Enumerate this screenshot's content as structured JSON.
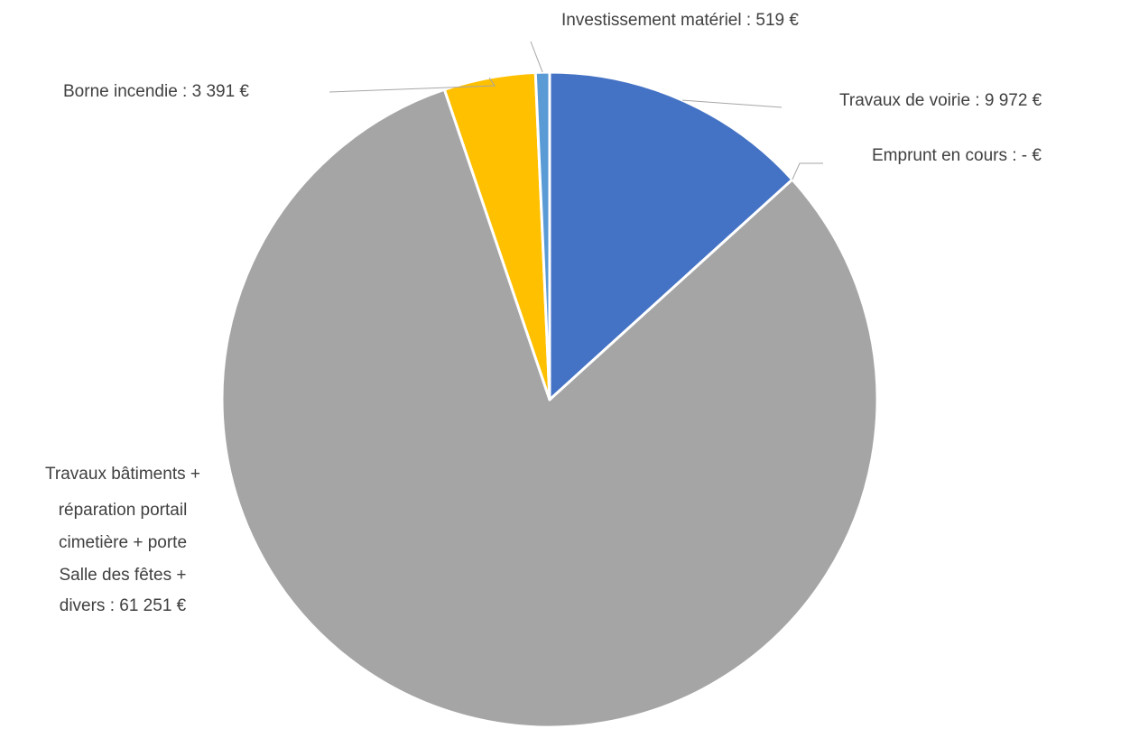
{
  "chart_data": {
    "type": "pie",
    "title": "",
    "slices": [
      {
        "name": "Travaux de voirie",
        "value": 9972,
        "label": "Travaux de voirie : 9 972 €",
        "color": "#4472c4"
      },
      {
        "name": "Emprunt en cours",
        "value": 0,
        "label": "Emprunt en cours : -  €",
        "color": "#ed7d31"
      },
      {
        "name": "Travaux bâtiments + réparation portail cimetière + porte Salle des fêtes + divers",
        "value": 61251,
        "label_lines": [
          "Travaux bâtiments +",
          "réparation portail",
          "cimetière + porte",
          "Salle des fêtes +",
          "divers : 61 251 €"
        ],
        "color": "#a5a5a5"
      },
      {
        "name": "Borne incendie",
        "value": 3391,
        "label": "Borne incendie : 3 391 €",
        "color": "#ffc000"
      },
      {
        "name": "Investissement matériel",
        "value": 519,
        "label": "Investissement matériel : 519 €",
        "color": "#5b9bd5"
      }
    ],
    "start_angle": "12 o'clock",
    "direction": "clockwise",
    "legend": "none",
    "data_labels": "outside with leader lines"
  }
}
